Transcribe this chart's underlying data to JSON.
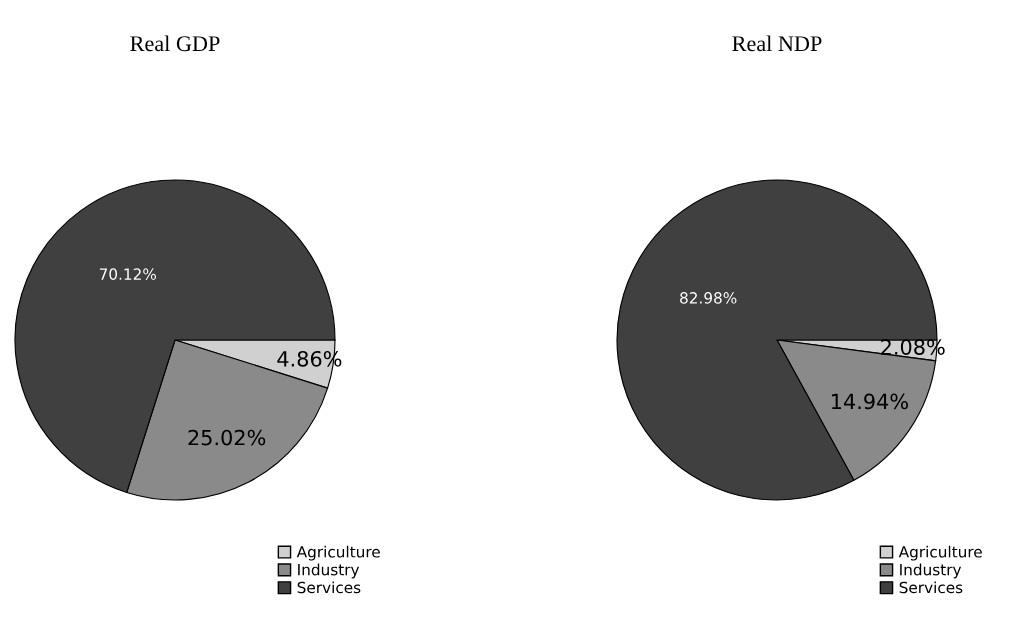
{
  "chart_data": [
    {
      "type": "pie",
      "title": "Real GDP",
      "categories": [
        "Agriculture",
        "Industry",
        "Services"
      ],
      "values": [
        4.86,
        25.02,
        70.12
      ],
      "colors": [
        "#d0d0d0",
        "#8a8a8a",
        "#404040"
      ],
      "data_labels": true,
      "value_labels": [
        "4.86%",
        "25.02%",
        "70.12%"
      ],
      "legend": "bottom right"
    },
    {
      "type": "pie",
      "title": "Real NDP",
      "categories": [
        "Agriculture",
        "Industry",
        "Services"
      ],
      "values": [
        2.08,
        14.94,
        82.98
      ],
      "colors": [
        "#d0d0d0",
        "#8a8a8a",
        "#404040"
      ],
      "data_labels": true,
      "value_labels": [
        "2.08%",
        "14.94%",
        "82.98%"
      ],
      "legend": "bottom right"
    }
  ]
}
